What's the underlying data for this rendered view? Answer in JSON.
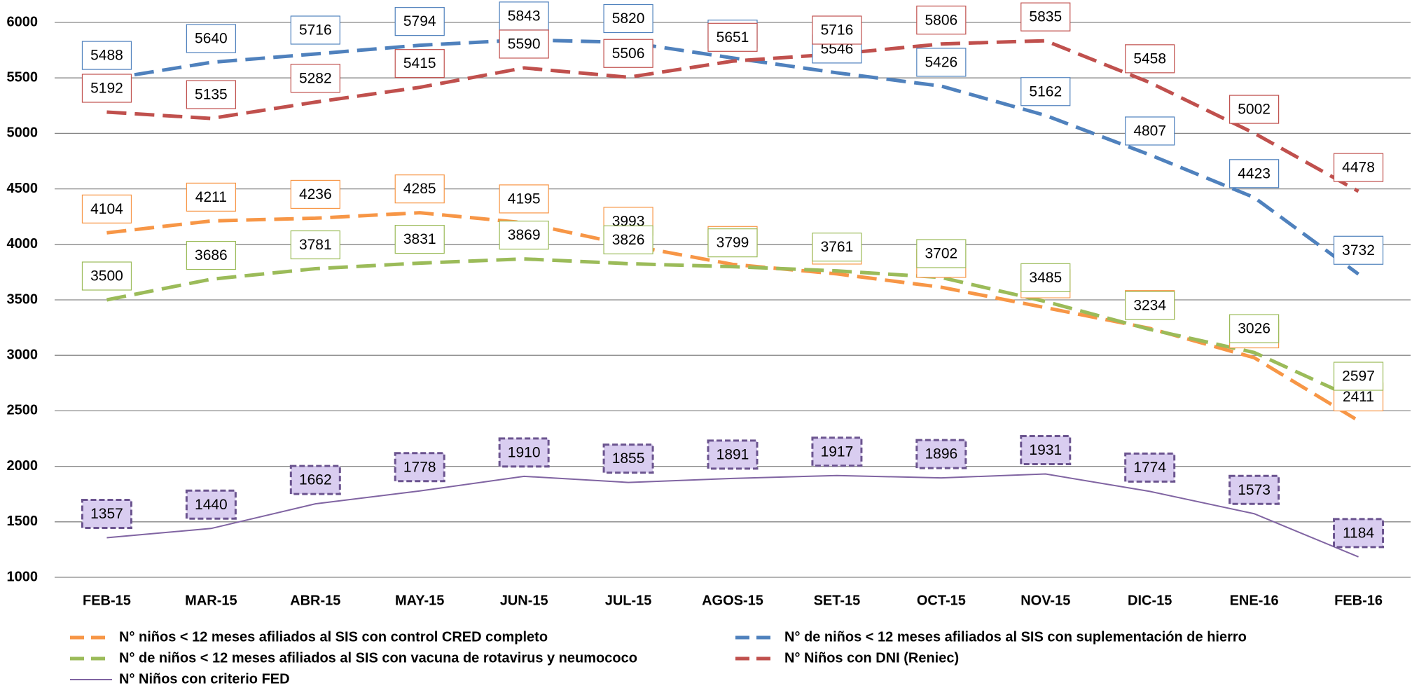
{
  "chart_data": {
    "type": "line",
    "categories": [
      "FEB-15",
      "MAR-15",
      "ABR-15",
      "MAY-15",
      "JUN-15",
      "JUL-15",
      "AGOS-15",
      "SET-15",
      "OCT-15",
      "NOV-15",
      "DIC-15",
      "ENE-16",
      "FEB-16"
    ],
    "series": [
      {
        "name": "N° niños < 12 meses afiliados al SIS con control CRED completo",
        "color": "#f79646",
        "dashed": true,
        "values": [
          4104,
          4211,
          4236,
          4285,
          4195,
          3993,
          3820,
          3734,
          3614,
          3430,
          3243,
          2979,
          2411
        ]
      },
      {
        "name": "N° de niños < 12 meses afiliados al SIS con suplementación de hierro",
        "color": "#4f81bd",
        "dashed": true,
        "values": [
          5488,
          5640,
          5716,
          5794,
          5843,
          5820,
          5680,
          5546,
          5426,
          5162,
          4807,
          4423,
          3732
        ]
      },
      {
        "name": "N° de niños < 12 meses afiliados al SIS con  vacuna de rotavirus y neumococo",
        "color": "#9bbb59",
        "dashed": true,
        "values": [
          3500,
          3686,
          3781,
          3831,
          3869,
          3826,
          3799,
          3761,
          3702,
          3485,
          3234,
          3026,
          2597
        ]
      },
      {
        "name": "N°  Niños con DNI (Reniec)",
        "color": "#c0504d",
        "dashed": true,
        "values": [
          5192,
          5135,
          5282,
          5415,
          5590,
          5506,
          5651,
          5716,
          5806,
          5835,
          5458,
          5002,
          4478
        ]
      },
      {
        "name": "N° Niños con criterio FED",
        "color": "#8064a2",
        "dashed": false,
        "values": [
          1357,
          1440,
          1662,
          1778,
          1910,
          1855,
          1891,
          1917,
          1896,
          1931,
          1774,
          1573,
          1184
        ]
      }
    ],
    "ylim": [
      1000,
      6000
    ],
    "yticks": [
      1000,
      1500,
      2000,
      2500,
      3000,
      3500,
      4000,
      4500,
      5000,
      5500,
      6000
    ],
    "grid": true,
    "legend": "bottom"
  }
}
